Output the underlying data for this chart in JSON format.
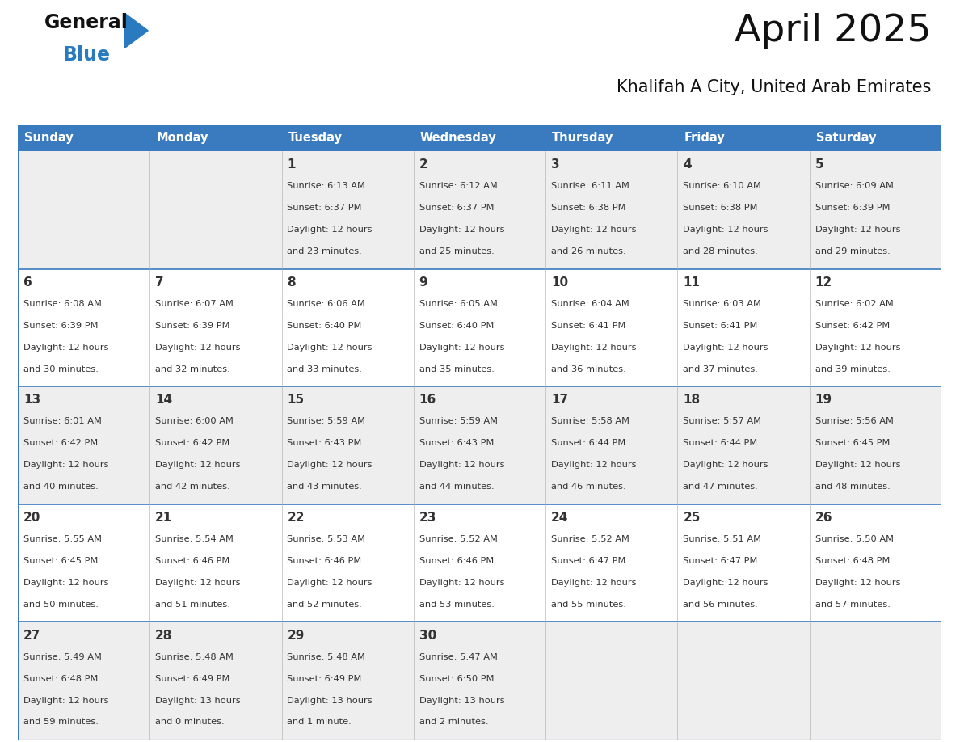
{
  "title": "April 2025",
  "subtitle": "Khalifah A City, United Arab Emirates",
  "days_of_week": [
    "Sunday",
    "Monday",
    "Tuesday",
    "Wednesday",
    "Thursday",
    "Friday",
    "Saturday"
  ],
  "header_bg": "#3a7abf",
  "header_text_color": "#ffffff",
  "row_bg_odd": "#eeeeee",
  "row_bg_even": "#ffffff",
  "cell_text_color": "#333333",
  "grid_line_color": "#3a7abf",
  "sep_line_color": "#3a7abf",
  "calendar_data": [
    [
      {
        "day": "",
        "sunrise": "",
        "sunset": "",
        "daylight": ""
      },
      {
        "day": "",
        "sunrise": "",
        "sunset": "",
        "daylight": ""
      },
      {
        "day": "1",
        "sunrise": "6:13 AM",
        "sunset": "6:37 PM",
        "daylight": "12 hours",
        "daylight2": "and 23 minutes."
      },
      {
        "day": "2",
        "sunrise": "6:12 AM",
        "sunset": "6:37 PM",
        "daylight": "12 hours",
        "daylight2": "and 25 minutes."
      },
      {
        "day": "3",
        "sunrise": "6:11 AM",
        "sunset": "6:38 PM",
        "daylight": "12 hours",
        "daylight2": "and 26 minutes."
      },
      {
        "day": "4",
        "sunrise": "6:10 AM",
        "sunset": "6:38 PM",
        "daylight": "12 hours",
        "daylight2": "and 28 minutes."
      },
      {
        "day": "5",
        "sunrise": "6:09 AM",
        "sunset": "6:39 PM",
        "daylight": "12 hours",
        "daylight2": "and 29 minutes."
      }
    ],
    [
      {
        "day": "6",
        "sunrise": "6:08 AM",
        "sunset": "6:39 PM",
        "daylight": "12 hours",
        "daylight2": "and 30 minutes."
      },
      {
        "day": "7",
        "sunrise": "6:07 AM",
        "sunset": "6:39 PM",
        "daylight": "12 hours",
        "daylight2": "and 32 minutes."
      },
      {
        "day": "8",
        "sunrise": "6:06 AM",
        "sunset": "6:40 PM",
        "daylight": "12 hours",
        "daylight2": "and 33 minutes."
      },
      {
        "day": "9",
        "sunrise": "6:05 AM",
        "sunset": "6:40 PM",
        "daylight": "12 hours",
        "daylight2": "and 35 minutes."
      },
      {
        "day": "10",
        "sunrise": "6:04 AM",
        "sunset": "6:41 PM",
        "daylight": "12 hours",
        "daylight2": "and 36 minutes."
      },
      {
        "day": "11",
        "sunrise": "6:03 AM",
        "sunset": "6:41 PM",
        "daylight": "12 hours",
        "daylight2": "and 37 minutes."
      },
      {
        "day": "12",
        "sunrise": "6:02 AM",
        "sunset": "6:42 PM",
        "daylight": "12 hours",
        "daylight2": "and 39 minutes."
      }
    ],
    [
      {
        "day": "13",
        "sunrise": "6:01 AM",
        "sunset": "6:42 PM",
        "daylight": "12 hours",
        "daylight2": "and 40 minutes."
      },
      {
        "day": "14",
        "sunrise": "6:00 AM",
        "sunset": "6:42 PM",
        "daylight": "12 hours",
        "daylight2": "and 42 minutes."
      },
      {
        "day": "15",
        "sunrise": "5:59 AM",
        "sunset": "6:43 PM",
        "daylight": "12 hours",
        "daylight2": "and 43 minutes."
      },
      {
        "day": "16",
        "sunrise": "5:59 AM",
        "sunset": "6:43 PM",
        "daylight": "12 hours",
        "daylight2": "and 44 minutes."
      },
      {
        "day": "17",
        "sunrise": "5:58 AM",
        "sunset": "6:44 PM",
        "daylight": "12 hours",
        "daylight2": "and 46 minutes."
      },
      {
        "day": "18",
        "sunrise": "5:57 AM",
        "sunset": "6:44 PM",
        "daylight": "12 hours",
        "daylight2": "and 47 minutes."
      },
      {
        "day": "19",
        "sunrise": "5:56 AM",
        "sunset": "6:45 PM",
        "daylight": "12 hours",
        "daylight2": "and 48 minutes."
      }
    ],
    [
      {
        "day": "20",
        "sunrise": "5:55 AM",
        "sunset": "6:45 PM",
        "daylight": "12 hours",
        "daylight2": "and 50 minutes."
      },
      {
        "day": "21",
        "sunrise": "5:54 AM",
        "sunset": "6:46 PM",
        "daylight": "12 hours",
        "daylight2": "and 51 minutes."
      },
      {
        "day": "22",
        "sunrise": "5:53 AM",
        "sunset": "6:46 PM",
        "daylight": "12 hours",
        "daylight2": "and 52 minutes."
      },
      {
        "day": "23",
        "sunrise": "5:52 AM",
        "sunset": "6:46 PM",
        "daylight": "12 hours",
        "daylight2": "and 53 minutes."
      },
      {
        "day": "24",
        "sunrise": "5:52 AM",
        "sunset": "6:47 PM",
        "daylight": "12 hours",
        "daylight2": "and 55 minutes."
      },
      {
        "day": "25",
        "sunrise": "5:51 AM",
        "sunset": "6:47 PM",
        "daylight": "12 hours",
        "daylight2": "and 56 minutes."
      },
      {
        "day": "26",
        "sunrise": "5:50 AM",
        "sunset": "6:48 PM",
        "daylight": "12 hours",
        "daylight2": "and 57 minutes."
      }
    ],
    [
      {
        "day": "27",
        "sunrise": "5:49 AM",
        "sunset": "6:48 PM",
        "daylight": "12 hours",
        "daylight2": "and 59 minutes."
      },
      {
        "day": "28",
        "sunrise": "5:48 AM",
        "sunset": "6:49 PM",
        "daylight": "13 hours",
        "daylight2": "and 0 minutes."
      },
      {
        "day": "29",
        "sunrise": "5:48 AM",
        "sunset": "6:49 PM",
        "daylight": "13 hours",
        "daylight2": "and 1 minute."
      },
      {
        "day": "30",
        "sunrise": "5:47 AM",
        "sunset": "6:50 PM",
        "daylight": "13 hours",
        "daylight2": "and 2 minutes."
      },
      {
        "day": "",
        "sunrise": "",
        "sunset": "",
        "daylight": "",
        "daylight2": ""
      },
      {
        "day": "",
        "sunrise": "",
        "sunset": "",
        "daylight": "",
        "daylight2": ""
      },
      {
        "day": "",
        "sunrise": "",
        "sunset": "",
        "daylight": "",
        "daylight2": ""
      }
    ]
  ],
  "fig_width": 11.88,
  "fig_height": 9.18,
  "dpi": 100
}
